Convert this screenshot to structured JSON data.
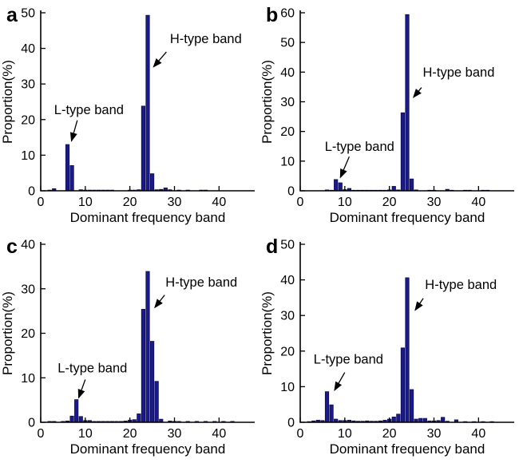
{
  "figure": {
    "background": "#ffffff",
    "bar_color": "#1a1a8c",
    "bar_edge_color": "#0a0a45",
    "axis_color": "#000000",
    "text_color": "#000000",
    "annotation_color": "#000000",
    "xlabel": "Dominant frequency band",
    "ylabel": "Proportion(%)",
    "panel_letters": [
      "a",
      "b",
      "c",
      "d"
    ]
  },
  "chart_data": [
    {
      "type": "bar",
      "panel_label": "a",
      "xlabel": "Dominant frequency band",
      "ylabel": "Proportion(%)",
      "xlim": [
        0,
        48
      ],
      "ylim": [
        0,
        50
      ],
      "xticks": [
        0,
        10,
        20,
        30,
        40
      ],
      "yticks": [
        0,
        10,
        20,
        30,
        40,
        50
      ],
      "bar_width": 0.8,
      "x": [
        2,
        3,
        6,
        7,
        9,
        10,
        11,
        12,
        13,
        14,
        15,
        16,
        20,
        21,
        22,
        23,
        24,
        25,
        26,
        27,
        28,
        29,
        31,
        33,
        36,
        37
      ],
      "values": [
        0.2,
        0.6,
        13.0,
        7.1,
        0.3,
        0.2,
        0.2,
        0.2,
        0.2,
        0.2,
        0.2,
        0.2,
        0.2,
        0.2,
        0.3,
        23.8,
        49.3,
        4.8,
        0.3,
        0.4,
        0.8,
        0.3,
        0.2,
        0.2,
        0.2,
        0.2
      ],
      "annotations": [
        {
          "text": "L-type band",
          "text_x": 3.0,
          "text_y": 21.5,
          "arrow": [
            8.2,
            19.8,
            6.9,
            14.0
          ]
        },
        {
          "text": "H-type band",
          "text_x": 29.0,
          "text_y": 41.5,
          "arrow": [
            28.2,
            39.0,
            25.3,
            34.8
          ]
        }
      ]
    },
    {
      "type": "bar",
      "panel_label": "b",
      "xlabel": "Dominant frequency band",
      "ylabel": "Proportion(%)",
      "xlim": [
        0,
        48
      ],
      "ylim": [
        0,
        60
      ],
      "xticks": [
        0,
        10,
        20,
        30,
        40
      ],
      "yticks": [
        0,
        10,
        20,
        30,
        40,
        50,
        60
      ],
      "bar_width": 0.8,
      "x": [
        6,
        7,
        8,
        9,
        10,
        11,
        12,
        13,
        14,
        15,
        16,
        17,
        18,
        19,
        20,
        21,
        22,
        23,
        24,
        25,
        26,
        29,
        30,
        33,
        34,
        37,
        38,
        41,
        42
      ],
      "values": [
        0.3,
        0.2,
        3.8,
        2.7,
        0.4,
        0.8,
        0.2,
        0.2,
        0.2,
        0.2,
        0.2,
        0.2,
        0.2,
        0.2,
        0.3,
        1.5,
        0.3,
        26.3,
        59.4,
        4.0,
        0.3,
        0.2,
        0.2,
        0.5,
        0.2,
        0.2,
        0.2,
        0.2,
        0.2
      ],
      "annotations": [
        {
          "text": "L-type band",
          "text_x": 5.5,
          "text_y": 13.5,
          "arrow": [
            11.0,
            11.5,
            9.0,
            4.5
          ]
        },
        {
          "text": "H-type band",
          "text_x": 27.5,
          "text_y": 38.5,
          "arrow": [
            27.2,
            34.8,
            25.4,
            31.5
          ]
        }
      ]
    },
    {
      "type": "bar",
      "panel_label": "c",
      "xlabel": "Dominant frequency band",
      "ylabel": "Proportion(%)",
      "xlim": [
        0,
        48
      ],
      "ylim": [
        0,
        40
      ],
      "xticks": [
        0,
        10,
        20,
        30,
        40
      ],
      "yticks": [
        0,
        10,
        20,
        30,
        40
      ],
      "bar_width": 0.8,
      "x": [
        2,
        3,
        5,
        6,
        7,
        8,
        9,
        10,
        11,
        12,
        13,
        14,
        15,
        16,
        17,
        18,
        19,
        20,
        21,
        22,
        23,
        24,
        25,
        26,
        27,
        29,
        30,
        31,
        33,
        35,
        37,
        39,
        41,
        43
      ],
      "values": [
        0.2,
        0.2,
        0.2,
        0.3,
        1.4,
        5.1,
        1.3,
        0.4,
        0.4,
        0.2,
        0.2,
        0.2,
        0.2,
        0.2,
        0.2,
        0.2,
        0.3,
        0.5,
        0.6,
        1.9,
        25.4,
        33.9,
        18.2,
        9.2,
        0.7,
        0.3,
        0.2,
        0.2,
        0.2,
        0.2,
        0.2,
        0.2,
        0.2,
        0.2
      ],
      "annotations": [
        {
          "text": "L-type band",
          "text_x": 3.8,
          "text_y": 11.2,
          "arrow": [
            10.0,
            9.6,
            8.5,
            5.5
          ]
        },
        {
          "text": "H-type band",
          "text_x": 28.0,
          "text_y": 30.5,
          "arrow": [
            27.8,
            28.6,
            25.6,
            25.8
          ]
        }
      ]
    },
    {
      "type": "bar",
      "panel_label": "d",
      "xlabel": "Dominant frequency band",
      "ylabel": "Proportion(%)",
      "xlim": [
        0,
        48
      ],
      "ylim": [
        0,
        50
      ],
      "xticks": [
        0,
        10,
        20,
        30,
        40
      ],
      "yticks": [
        0,
        10,
        20,
        30,
        40,
        50
      ],
      "bar_width": 0.8,
      "x": [
        2,
        3,
        4,
        5,
        6,
        7,
        8,
        9,
        10,
        11,
        12,
        13,
        14,
        15,
        16,
        17,
        18,
        19,
        20,
        21,
        22,
        23,
        24,
        25,
        26,
        27,
        28,
        29,
        30,
        31,
        32,
        33,
        35,
        37,
        39,
        41,
        43
      ],
      "values": [
        0.2,
        0.4,
        0.6,
        0.5,
        8.6,
        4.9,
        0.9,
        0.5,
        0.5,
        0.6,
        0.4,
        0.3,
        0.3,
        0.4,
        0.3,
        0.3,
        0.4,
        0.6,
        0.9,
        1.5,
        2.3,
        20.9,
        40.6,
        9.2,
        0.9,
        1.1,
        1.1,
        0.4,
        0.4,
        0.5,
        1.4,
        0.3,
        0.7,
        0.2,
        0.2,
        0.2,
        0.2
      ],
      "annotations": [
        {
          "text": "L-type band",
          "text_x": 3.0,
          "text_y": 16.5,
          "arrow": [
            10.0,
            14.0,
            7.7,
            9.0
          ]
        },
        {
          "text": "H-type band",
          "text_x": 28.0,
          "text_y": 37.5,
          "arrow": [
            27.6,
            34.8,
            25.8,
            31.5
          ]
        }
      ]
    }
  ]
}
